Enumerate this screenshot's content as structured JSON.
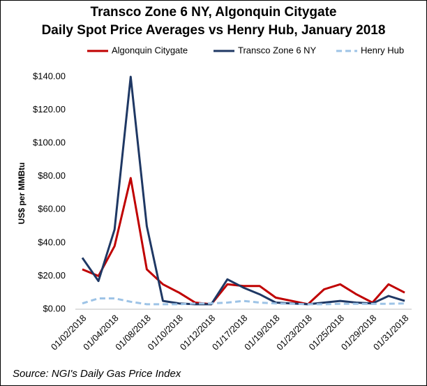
{
  "chart_data": {
    "type": "line",
    "title": [
      "Transco Zone 6 NY, Algonquin Citygate",
      "Daily Spot Price Averages vs Henry Hub, January 2018"
    ],
    "y_label": "US$ per MMBtu",
    "source": "Source: NGI's Daily Gas Price Index",
    "categories": [
      "01/02/2018",
      null,
      "01/04/2018",
      null,
      "01/08/2018",
      null,
      "01/10/2018",
      null,
      "01/12/2018",
      null,
      "01/17/2018",
      null,
      "01/19/2018",
      null,
      "01/23/2018",
      null,
      "01/25/2018",
      null,
      "01/29/2018",
      null,
      "01/31/2018"
    ],
    "series": [
      {
        "name": "Algonquin Citygate",
        "color": "#c00000",
        "dashed": false,
        "values": [
          24,
          20,
          38,
          79,
          24,
          15,
          10,
          4,
          3,
          15,
          14,
          14,
          7,
          5,
          3,
          12,
          15,
          9,
          4,
          15,
          10
        ]
      },
      {
        "name": "Transco Zone 6 NY",
        "color": "#1f3864",
        "dashed": false,
        "values": [
          31,
          17,
          48,
          140,
          50,
          5,
          3.5,
          3,
          3,
          18,
          13,
          9,
          4,
          3.5,
          3,
          4,
          5,
          4,
          3.5,
          8,
          5
        ]
      },
      {
        "name": "Henry Hub",
        "color": "#9dc3e6",
        "dashed": true,
        "values": [
          3.5,
          6.5,
          6.5,
          4.5,
          3,
          3,
          3,
          3.5,
          3.5,
          4,
          5,
          4,
          3.5,
          3.3,
          3,
          3,
          3.3,
          3.3,
          3.2,
          3.3,
          3.5
        ]
      }
    ],
    "ylim": [
      0,
      140
    ],
    "yticks": [
      {
        "value": 0,
        "label": "$0.00"
      },
      {
        "value": 20,
        "label": "$20.00"
      },
      {
        "value": 40,
        "label": "$40.00"
      },
      {
        "value": 60,
        "label": "$60.00"
      },
      {
        "value": 80,
        "label": "$80.00"
      },
      {
        "value": 100,
        "label": "$100.00"
      },
      {
        "value": 120,
        "label": "$120.00"
      },
      {
        "value": 140,
        "label": "$140.00"
      }
    ],
    "grid": false,
    "legend": "top"
  }
}
